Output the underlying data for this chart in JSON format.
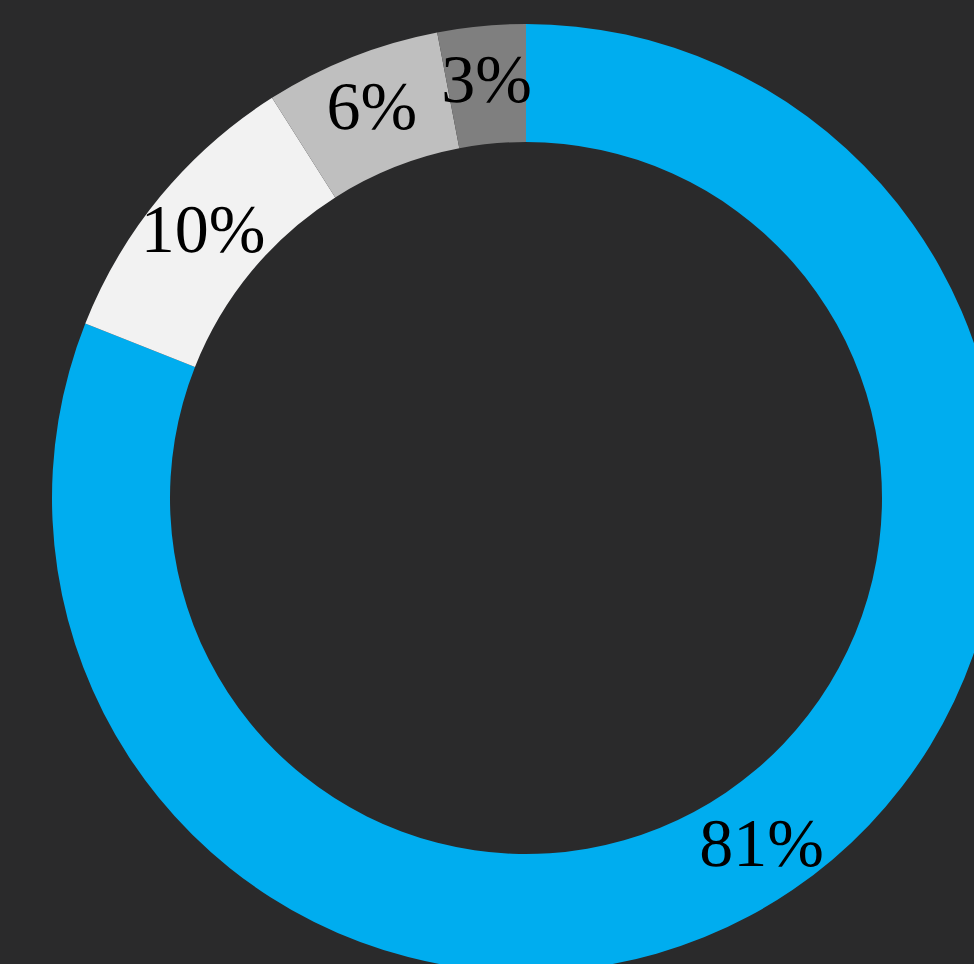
{
  "chart_data": {
    "type": "donut",
    "categories": [
      null,
      null,
      null,
      null
    ],
    "values": [
      81,
      10,
      6,
      3
    ],
    "colors": [
      "#00adef",
      "#f2f2f2",
      "#bfbfbf",
      "#7f7f7f"
    ],
    "value_labels": [
      "81%",
      "10%",
      "6%",
      "3%"
    ]
  }
}
